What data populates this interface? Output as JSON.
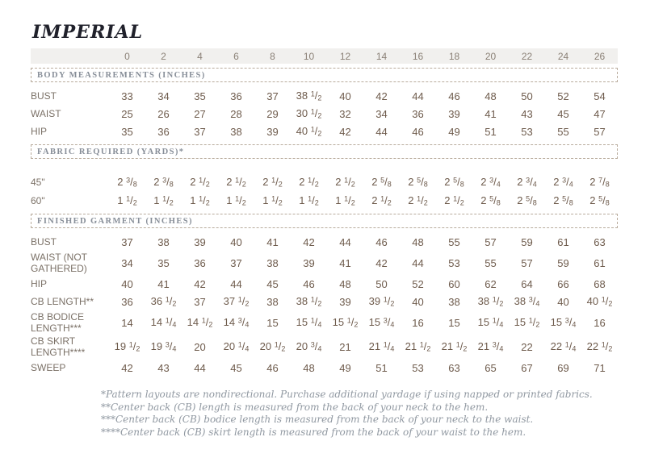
{
  "title": "IMPERIAL",
  "sizes": [
    "0",
    "2",
    "4",
    "6",
    "8",
    "10",
    "12",
    "14",
    "16",
    "18",
    "20",
    "22",
    "24",
    "26"
  ],
  "sections": [
    {
      "header": "BODY MEASUREMENTS (INCHES)",
      "rows": [
        {
          "label": "BUST",
          "values": [
            "33",
            "34",
            "35",
            "36",
            "37",
            "38 1/2",
            "40",
            "42",
            "44",
            "46",
            "48",
            "50",
            "52",
            "54"
          ]
        },
        {
          "label": "WAIST",
          "values": [
            "25",
            "26",
            "27",
            "28",
            "29",
            "30 1/2",
            "32",
            "34",
            "36",
            "39",
            "41",
            "43",
            "45",
            "47"
          ]
        },
        {
          "label": "HIP",
          "values": [
            "35",
            "36",
            "37",
            "38",
            "39",
            "40 1/2",
            "42",
            "44",
            "46",
            "49",
            "51",
            "53",
            "55",
            "57"
          ]
        }
      ]
    },
    {
      "header": "FABRIC REQUIRED (YARDS)*",
      "rows": [
        {
          "label": "45\"",
          "values": [
            "2 3/8",
            "2 3/8",
            "2 1/2",
            "2 1/2",
            "2 1/2",
            "2 1/2",
            "2 1/2",
            "2 5/8",
            "2 5/8",
            "2 5/8",
            "2 3/4",
            "2 3/4",
            "2 3/4",
            "2 7/8"
          ]
        },
        {
          "label": "60\"",
          "values": [
            "1 1/2",
            "1 1/2",
            "1 1/2",
            "1 1/2",
            "1 1/2",
            "1 1/2",
            "1 1/2",
            "2 1/2",
            "2 1/2",
            "2 1/2",
            "2 5/8",
            "2 5/8",
            "2 5/8",
            "2 5/8"
          ]
        }
      ]
    },
    {
      "header": "FINISHED GARMENT (INCHES)",
      "rows": [
        {
          "label": "BUST",
          "values": [
            "37",
            "38",
            "39",
            "40",
            "41",
            "42",
            "44",
            "46",
            "48",
            "55",
            "57",
            "59",
            "61",
            "63"
          ]
        },
        {
          "label": "WAIST (NOT GATHERED)",
          "values": [
            "34",
            "35",
            "36",
            "37",
            "38",
            "39",
            "41",
            "42",
            "44",
            "53",
            "55",
            "57",
            "59",
            "61"
          ]
        },
        {
          "label": "HIP",
          "values": [
            "40",
            "41",
            "42",
            "44",
            "45",
            "46",
            "48",
            "50",
            "52",
            "60",
            "62",
            "64",
            "66",
            "68"
          ]
        },
        {
          "label": "CB LENGTH**",
          "values": [
            "36",
            "36 1/2",
            "37",
            "37 1/2",
            "38",
            "38 1/2",
            "39",
            "39 1/2",
            "40",
            "38",
            "38 1/2",
            "38 3/4",
            "40",
            "40 1/2"
          ]
        },
        {
          "label": "CB BODICE LENGTH***",
          "values": [
            "14",
            "14 1/4",
            "14 1/2",
            "14 3/4",
            "15",
            "15 1/4",
            "15 1/2",
            "15 3/4",
            "16",
            "15",
            "15 1/4",
            "15 1/2",
            "15 3/4",
            "16"
          ]
        },
        {
          "label": "CB SKIRT LENGTH****",
          "values": [
            "19 1/2",
            "19 3/4",
            "20",
            "20 1/4",
            "20 1/2",
            "20 3/4",
            "21",
            "21 1/4",
            "21 1/2",
            "21 1/2",
            "21 3/4",
            "22",
            "22 1/4",
            "22 1/2"
          ]
        },
        {
          "label": "SWEEP",
          "values": [
            "42",
            "43",
            "44",
            "45",
            "46",
            "48",
            "49",
            "51",
            "53",
            "63",
            "65",
            "67",
            "69",
            "71"
          ]
        }
      ]
    }
  ],
  "footnotes": [
    "*Pattern layouts are nondirectional. Purchase additional yardage if using napped or printed fabrics.",
    "**Center back (CB) length is measured from the back of your neck to the hem.",
    "***Center back (CB) bodice length is measured from the back of your neck to the waist.",
    "****Center back (CB) skirt length is measured from the back of your waist to the hem."
  ],
  "colors": {
    "title_text": "#20212b",
    "header_band_bg": "#f1f0ee",
    "header_band_text": "#8a8076",
    "section_border": "#b8ab9c",
    "section_text": "#878e98",
    "row_label_text": "#7b7167",
    "value_text": "#6e5b4c",
    "footnote_text": "#9098a1"
  }
}
